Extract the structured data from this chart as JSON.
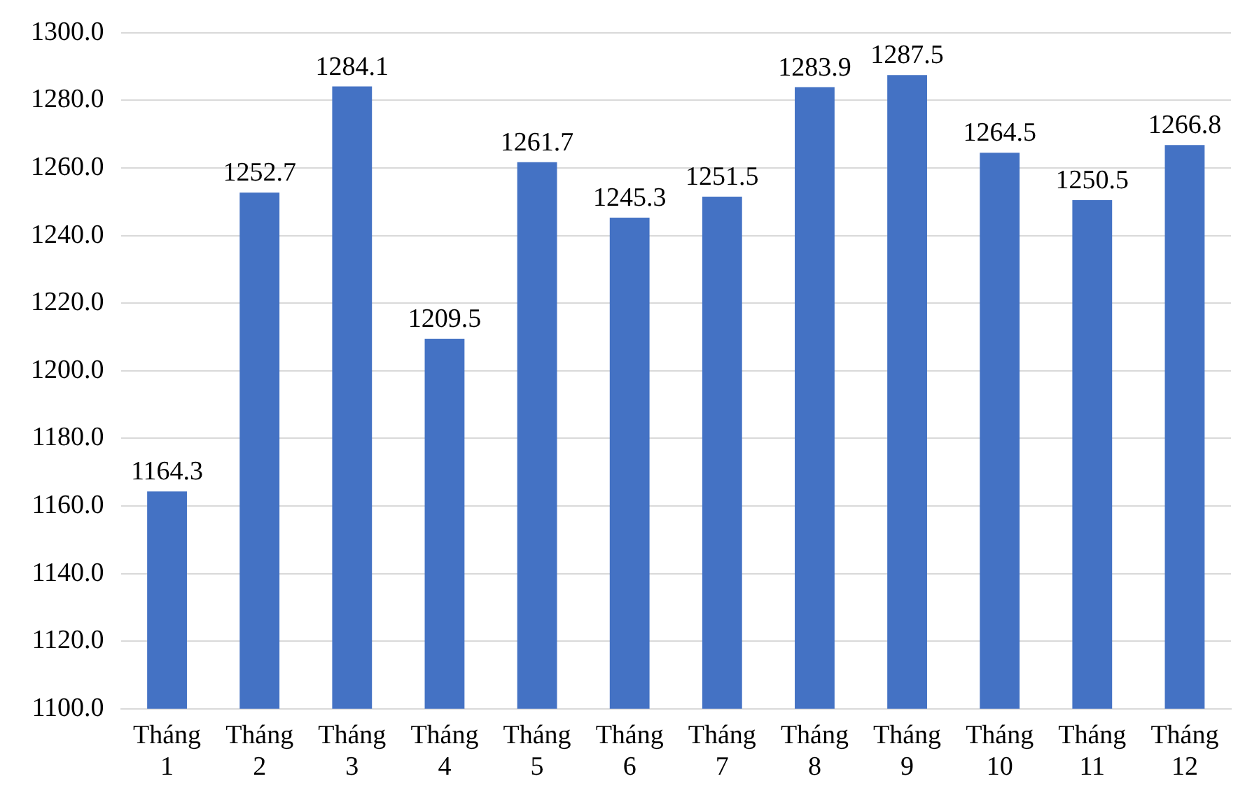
{
  "chart_data": {
    "type": "bar",
    "categories": [
      "Tháng 1",
      "Tháng 2",
      "Tháng 3",
      "Tháng 4",
      "Tháng 5",
      "Tháng 6",
      "Tháng 7",
      "Tháng 8",
      "Tháng 9",
      "Tháng 10",
      "Tháng 11",
      "Tháng 12"
    ],
    "values": [
      1164.3,
      1252.7,
      1284.1,
      1209.5,
      1261.7,
      1245.3,
      1251.5,
      1283.9,
      1287.5,
      1264.5,
      1250.5,
      1266.8
    ],
    "color": "#4472c4",
    "ylim": [
      1100,
      1300
    ],
    "yticks": [
      {
        "value": 1100,
        "label": "1100.0"
      },
      {
        "value": 1120,
        "label": "1120.0"
      },
      {
        "value": 1140,
        "label": "1140.0"
      },
      {
        "value": 1160,
        "label": "1160.0"
      },
      {
        "value": 1180,
        "label": "1180.0"
      },
      {
        "value": 1200,
        "label": "1200.0"
      },
      {
        "value": 1220,
        "label": "1220.0"
      },
      {
        "value": 1240,
        "label": "1240.0"
      },
      {
        "value": 1260,
        "label": "1260.0"
      },
      {
        "value": 1280,
        "label": "1280.0"
      },
      {
        "value": 1300,
        "label": "1300.0"
      }
    ],
    "grid": "y",
    "data_labels": true,
    "legend": false
  }
}
